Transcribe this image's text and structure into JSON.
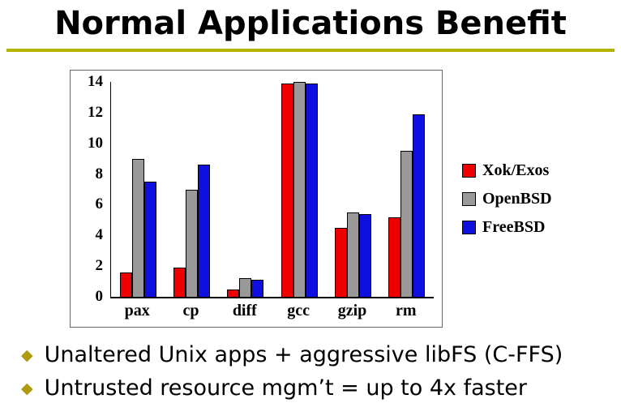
{
  "slide": {
    "title": "Normal Applications Benefit",
    "accent_color": "#b5b500",
    "bullets": [
      {
        "text": "Unaltered Unix apps + aggressive libFS (C-FFS)"
      },
      {
        "text": "Untrusted resource mgm’t = up to 4x faster"
      }
    ]
  },
  "chart_data": {
    "type": "bar",
    "title": "",
    "categories": [
      "pax",
      "cp",
      "diff",
      "gcc",
      "gzip",
      "rm"
    ],
    "series": [
      {
        "name": "Xok/Exos",
        "color": "#ee0000",
        "values": [
          1.6,
          1.9,
          0.5,
          13.9,
          4.5,
          5.2
        ]
      },
      {
        "name": "OpenBSD",
        "color": "#999999",
        "values": [
          9.0,
          7.0,
          1.2,
          14.0,
          5.5,
          9.5
        ]
      },
      {
        "name": "FreeBSD",
        "color": "#0f0fe0",
        "values": [
          7.5,
          8.6,
          1.1,
          13.9,
          5.4,
          11.9
        ]
      }
    ],
    "ylim": [
      0,
      14
    ],
    "yticks": [
      0,
      2,
      4,
      6,
      8,
      10,
      12,
      14
    ],
    "grid": false,
    "legend_position": "right"
  }
}
